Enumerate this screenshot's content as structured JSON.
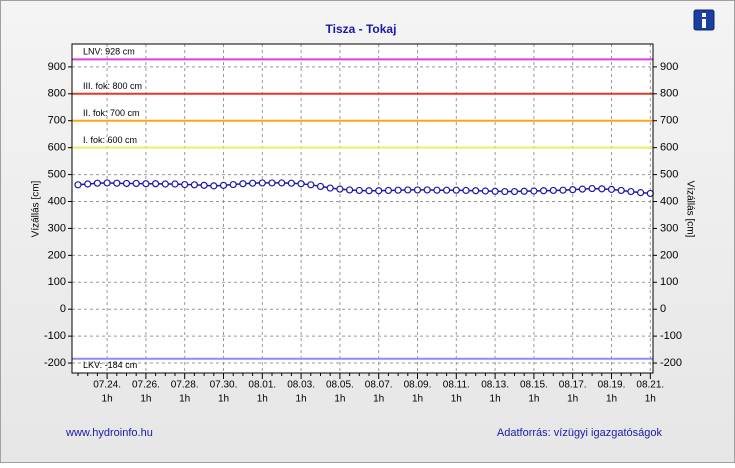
{
  "chart_data": {
    "type": "line",
    "title": "Tisza - Tokaj",
    "y_label": "Vízállás [cm]",
    "y2_label": "Vízállás [cm]",
    "source_left": "www.hydroinfo.hu",
    "source_right": "Adatforrás: vízügyi igazgatóságok",
    "categories": [
      null,
      null,
      null,
      "07.24.",
      null,
      null,
      null,
      "07.26.",
      null,
      null,
      null,
      "07.28.",
      null,
      null,
      null,
      "07.30.",
      null,
      null,
      null,
      "08.01.",
      null,
      null,
      null,
      "08.03.",
      null,
      null,
      null,
      "08.05.",
      null,
      null,
      null,
      "08.07.",
      null,
      null,
      null,
      "08.09.",
      null,
      null,
      null,
      "08.11.",
      null,
      null,
      null,
      "08.13.",
      null,
      null,
      null,
      "08.15.",
      null,
      null,
      null,
      "08.17.",
      null,
      null,
      null,
      "08.19.",
      null,
      null,
      null,
      "08.21."
    ],
    "category_sublabels": [
      null,
      null,
      null,
      "1h",
      null,
      null,
      null,
      "1h",
      null,
      null,
      null,
      "1h",
      null,
      null,
      null,
      "1h",
      null,
      null,
      null,
      "1h",
      null,
      null,
      null,
      "1h",
      null,
      null,
      null,
      "1h",
      null,
      null,
      null,
      "1h",
      null,
      null,
      null,
      "1h",
      null,
      null,
      null,
      "1h",
      null,
      null,
      null,
      "1h",
      null,
      null,
      null,
      "1h",
      null,
      null,
      null,
      "1h",
      null,
      null,
      null,
      "1h",
      null,
      null,
      null,
      "1h"
    ],
    "series": [
      {
        "color": "#1a1aa8",
        "values": [
          462,
          465,
          468,
          469,
          468,
          467,
          467,
          466,
          466,
          465,
          465,
          463,
          462,
          460,
          458,
          460,
          463,
          466,
          468,
          469,
          469,
          469,
          468,
          466,
          462,
          456,
          450,
          446,
          443,
          441,
          440,
          440,
          441,
          442,
          443,
          443,
          443,
          442,
          442,
          442,
          441,
          440,
          439,
          438,
          437,
          437,
          438,
          439,
          440,
          441,
          442,
          444,
          446,
          448,
          447,
          445,
          441,
          437,
          433,
          430
        ]
      }
    ],
    "ylim": [
      -237,
      985
    ],
    "yticks": [
      -200,
      -100,
      0,
      100,
      200,
      300,
      400,
      500,
      600,
      700,
      800,
      900
    ],
    "grid": true,
    "reference_lines": [
      {
        "label": "LNV: 928 cm",
        "value": 928,
        "color": "#e040e0"
      },
      {
        "label": "III. fok: 800 cm",
        "value": 800,
        "color": "#e03a2a"
      },
      {
        "label": "II. fok: 700 cm",
        "value": 700,
        "color": "#ffa41e"
      },
      {
        "label": "I. fok: 600 cm",
        "value": 600,
        "color": "#eeee66"
      },
      {
        "label": "LKV: -184 cm",
        "value": -184,
        "color": "#8c8cff"
      }
    ]
  }
}
